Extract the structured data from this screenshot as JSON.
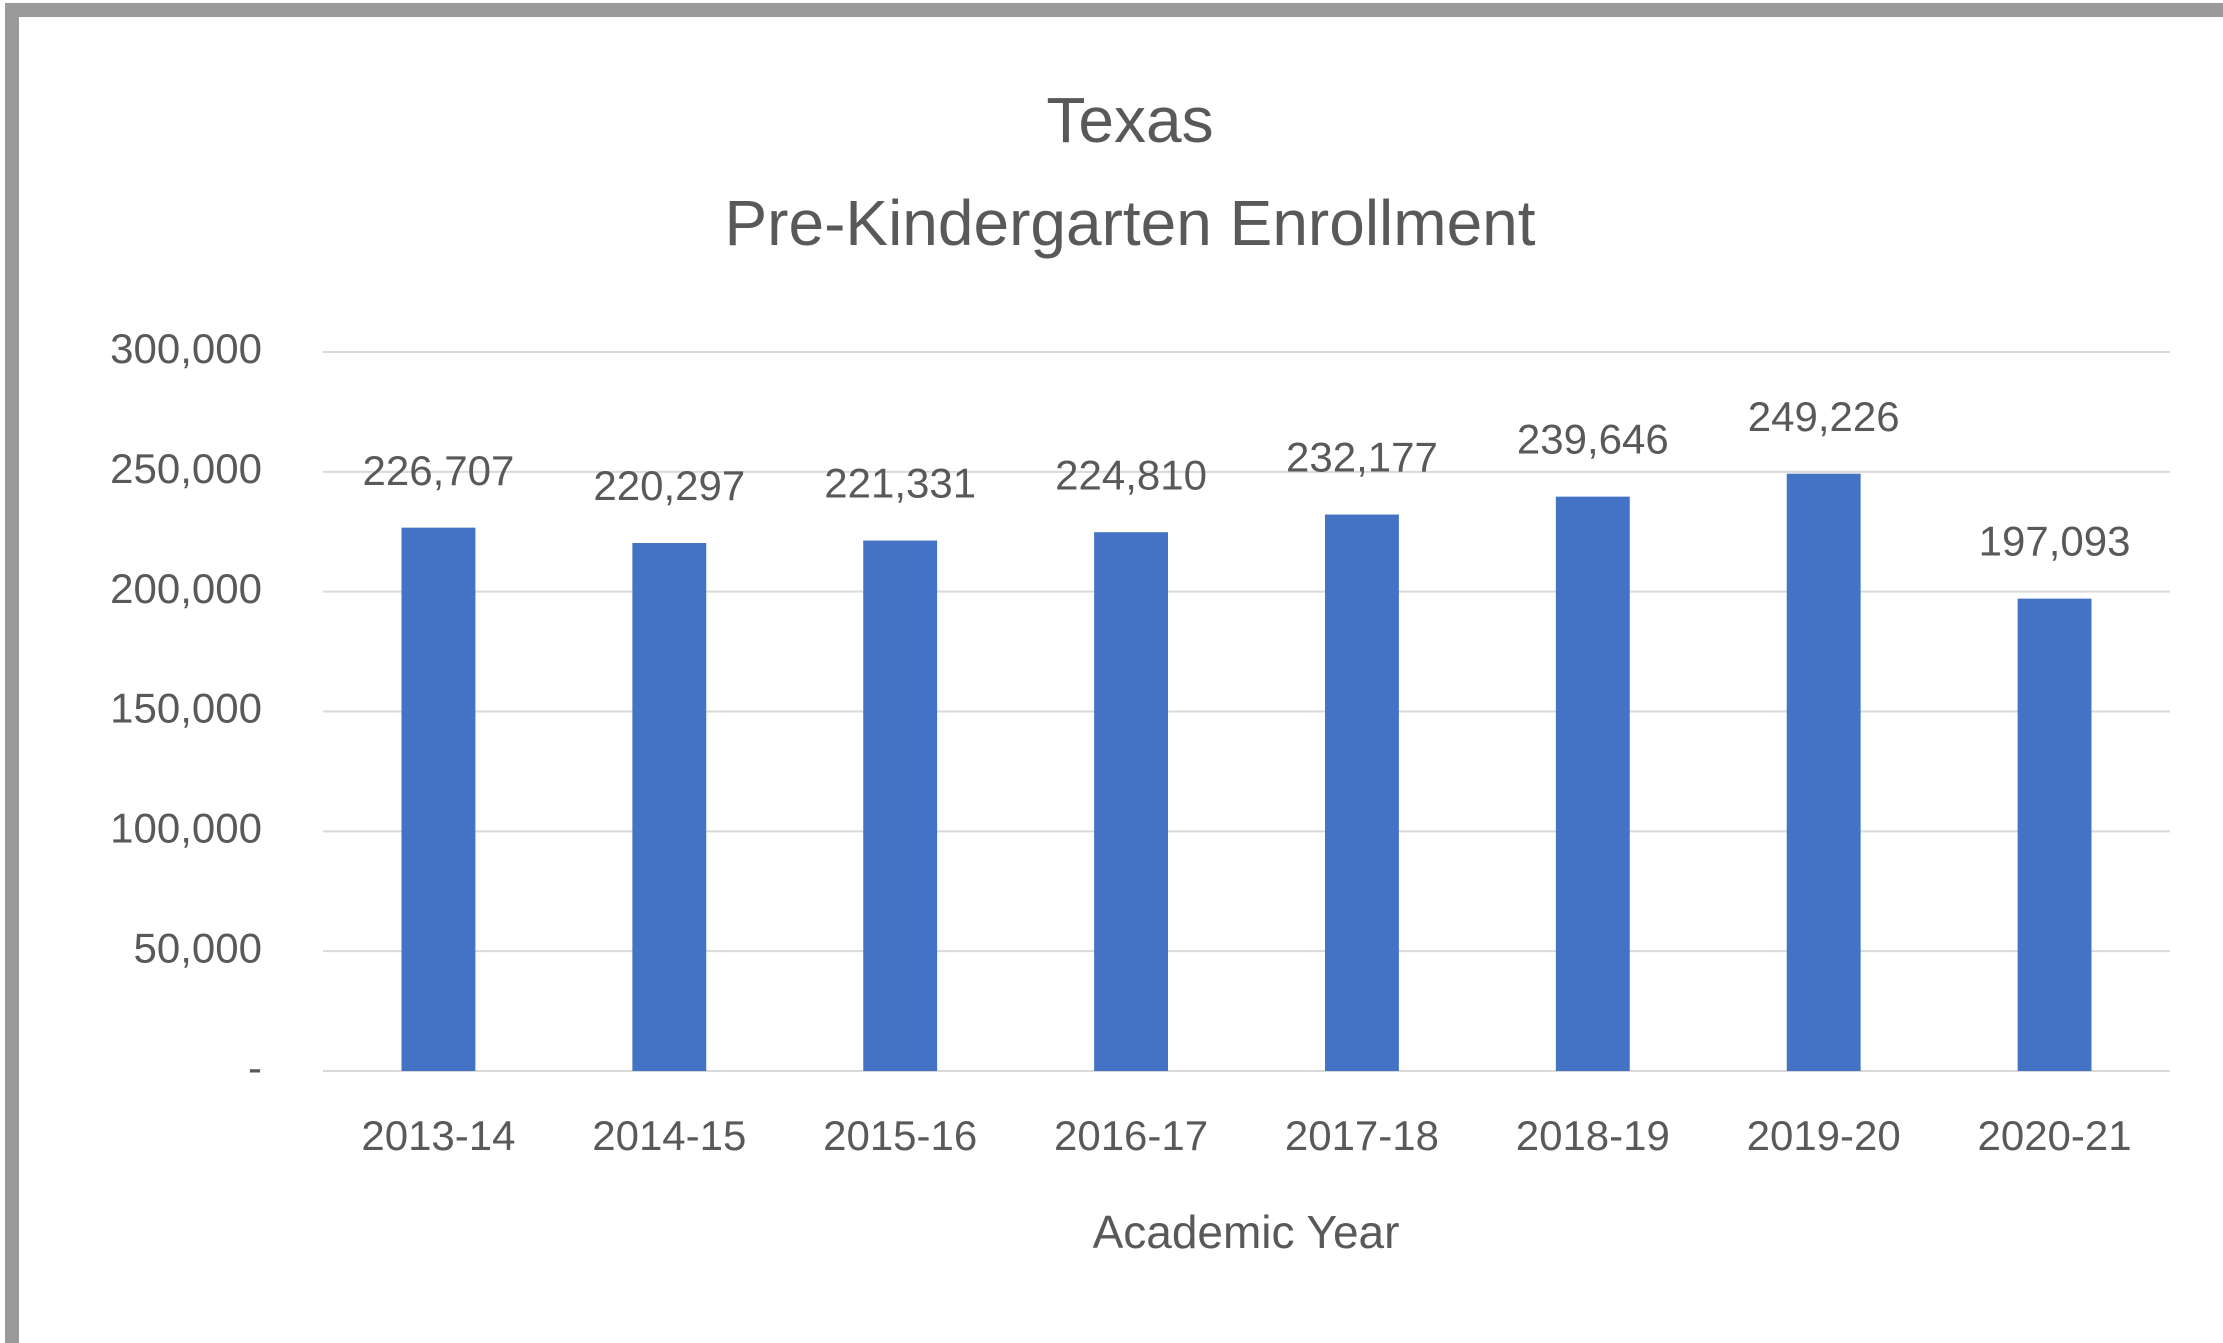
{
  "chart_data": {
    "type": "bar",
    "title": "Texas",
    "subtitle": "Pre-Kindergarten Enrollment",
    "x_label": "Academic Year",
    "categories": [
      "2013-14",
      "2014-15",
      "2015-16",
      "2016-17",
      "2017-18",
      "2018-19",
      "2019-20",
      "2020-21"
    ],
    "values": [
      226707,
      220297,
      221331,
      224810,
      232177,
      239646,
      249226,
      197093
    ],
    "value_labels": [
      "226,707",
      "220,297",
      "221,331",
      "224,810",
      "232,177",
      "239,646",
      "249,226",
      "197,093"
    ],
    "color": "#4472c4",
    "ylim": [
      0,
      300000
    ],
    "yticks": [
      {
        "value": 0,
        "label": "-"
      },
      {
        "value": 50000,
        "label": "50,000"
      },
      {
        "value": 100000,
        "label": "100,000"
      },
      {
        "value": 150000,
        "label": "150,000"
      },
      {
        "value": 200000,
        "label": "200,000"
      },
      {
        "value": 250000,
        "label": "250,000"
      },
      {
        "value": 300000,
        "label": "300,000"
      }
    ],
    "grid": true
  }
}
